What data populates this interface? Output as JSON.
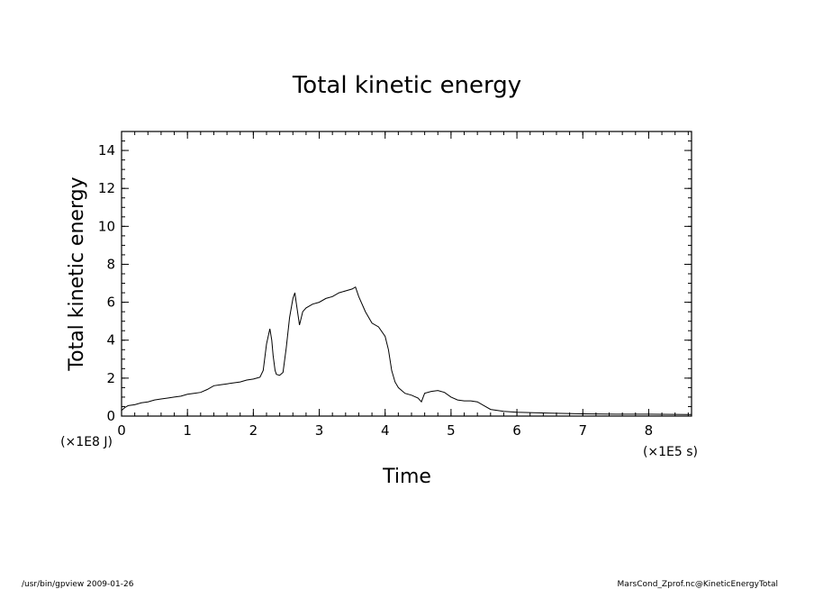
{
  "chart_data": {
    "type": "line",
    "title": "Total kinetic energy",
    "xlabel": "Time",
    "ylabel": "Total kinetic energy",
    "x_unit": "(×1E5 s)",
    "y_unit": "(×1E8 J)",
    "xlim": [
      0,
      8.65
    ],
    "ylim": [
      0,
      15
    ],
    "x_ticks": [
      0,
      1,
      2,
      3,
      4,
      5,
      6,
      7,
      8
    ],
    "y_ticks": [
      0,
      2,
      4,
      6,
      8,
      10,
      12,
      14
    ],
    "grid": false,
    "series": [
      {
        "x": [
          0,
          0.05,
          0.1,
          0.2,
          0.3,
          0.4,
          0.5,
          0.6,
          0.7,
          0.8,
          0.9,
          1.0,
          1.1,
          1.2,
          1.3,
          1.4,
          1.5,
          1.6,
          1.7,
          1.8,
          1.9,
          2.0,
          2.05,
          2.1,
          2.15,
          2.2,
          2.25,
          2.28,
          2.3,
          2.33,
          2.35,
          2.4,
          2.45,
          2.5,
          2.55,
          2.6,
          2.63,
          2.65,
          2.7,
          2.75,
          2.8,
          2.9,
          3.0,
          3.1,
          3.2,
          3.3,
          3.4,
          3.5,
          3.55,
          3.6,
          3.7,
          3.8,
          3.9,
          4.0,
          4.05,
          4.1,
          4.15,
          4.2,
          4.3,
          4.4,
          4.5,
          4.55,
          4.6,
          4.7,
          4.8,
          4.9,
          5.0,
          5.1,
          5.2,
          5.3,
          5.4,
          5.5,
          5.6,
          5.8,
          6.0,
          6.5,
          7.0,
          7.5,
          8.0,
          8.65
        ],
        "y": [
          0.3,
          0.45,
          0.55,
          0.6,
          0.7,
          0.75,
          0.85,
          0.9,
          0.95,
          1.0,
          1.05,
          1.15,
          1.2,
          1.25,
          1.4,
          1.6,
          1.65,
          1.7,
          1.75,
          1.8,
          1.9,
          1.95,
          2.0,
          2.05,
          2.4,
          3.8,
          4.6,
          4.0,
          3.2,
          2.4,
          2.2,
          2.15,
          2.3,
          3.6,
          5.2,
          6.2,
          6.5,
          6.0,
          4.8,
          5.5,
          5.7,
          5.9,
          6.0,
          6.2,
          6.3,
          6.5,
          6.6,
          6.7,
          6.8,
          6.3,
          5.5,
          4.9,
          4.7,
          4.2,
          3.5,
          2.4,
          1.8,
          1.5,
          1.2,
          1.1,
          0.95,
          0.75,
          1.2,
          1.3,
          1.35,
          1.25,
          1.0,
          0.85,
          0.8,
          0.8,
          0.75,
          0.55,
          0.35,
          0.25,
          0.2,
          0.15,
          0.12,
          0.1,
          0.1,
          0.08
        ]
      }
    ]
  },
  "footer": {
    "left": "/usr/bin/gpview   2009-01-26",
    "right": "MarsCond_Zprof.nc@KineticEnergyTotal"
  }
}
